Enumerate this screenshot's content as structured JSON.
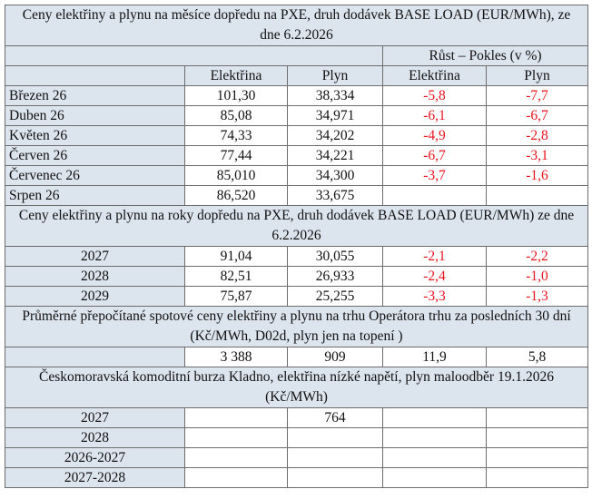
{
  "sections": [
    {
      "title": "Ceny elektřiny a plynu na měsíce dopředu na PXE, druh dodávek BASE LOAD (EUR/MWh), ze dne 6.2.2026",
      "group_header": "Růst – Pokles (v %)",
      "column_headers": [
        "Elektřina",
        "Plyn",
        "Elektřina",
        "Plyn"
      ],
      "rows": [
        {
          "label": "Březen  26",
          "values": [
            "101,30",
            "38,334",
            "-5,8",
            "-7,7"
          ]
        },
        {
          "label": "Duben  26",
          "values": [
            "85,08",
            "34,971",
            "-6,1",
            "-6,7"
          ]
        },
        {
          "label": "Květen  26",
          "values": [
            "74,33",
            "34,202",
            "-4,9",
            "-2,8"
          ]
        },
        {
          "label": "Červen 26",
          "values": [
            "77,44",
            "34,221",
            "-6,7",
            "-3,1"
          ]
        },
        {
          "label": "Červenec 26",
          "values": [
            "85,010",
            "34,300",
            "-3,7",
            "-1,6"
          ]
        },
        {
          "label": "Srpen 26",
          "values": [
            "86,520",
            "33,675",
            null,
            null
          ]
        }
      ]
    },
    {
      "title": "Ceny elektřiny a plynu na roky dopředu na PXE, druh dodávek BASE LOAD (EUR/MWh) ze dne 6.2.2026",
      "rows": [
        {
          "label": "2027",
          "values": [
            "91,04",
            "30,055",
            "-2,1",
            "-2,2"
          ]
        },
        {
          "label": "2028",
          "values": [
            "82,51",
            "26,933",
            "-2,4",
            "-1,0"
          ]
        },
        {
          "label": "2029",
          "values": [
            "75,87",
            "25,255",
            "-3,3",
            "-1,3"
          ]
        }
      ]
    },
    {
      "title": "Průměrné přepočítané spotové ceny elektřiny a plynu na trhu Operátora trhu za posledních 30 dní (Kč/MWh, D02d, plyn jen na topení )",
      "rows": [
        {
          "label": null,
          "values": [
            "3 388",
            "909",
            "11,9",
            "5,8"
          ]
        }
      ]
    },
    {
      "title": "Českomoravská komoditní burza Kladno, elektřina nízké napětí, plyn maloodběr 19.1.2026 (Kč/MWh)",
      "rows": [
        {
          "label": "2027",
          "values": [
            null,
            "764",
            null,
            null
          ]
        },
        {
          "label": "2028",
          "values": [
            null,
            null,
            null,
            null
          ]
        },
        {
          "label": "2026-2027",
          "values": [
            null,
            null,
            null,
            null
          ]
        },
        {
          "label": "2027-2028",
          "values": [
            null,
            null,
            null,
            null
          ]
        }
      ]
    }
  ],
  "negative_color": "#e8141e"
}
